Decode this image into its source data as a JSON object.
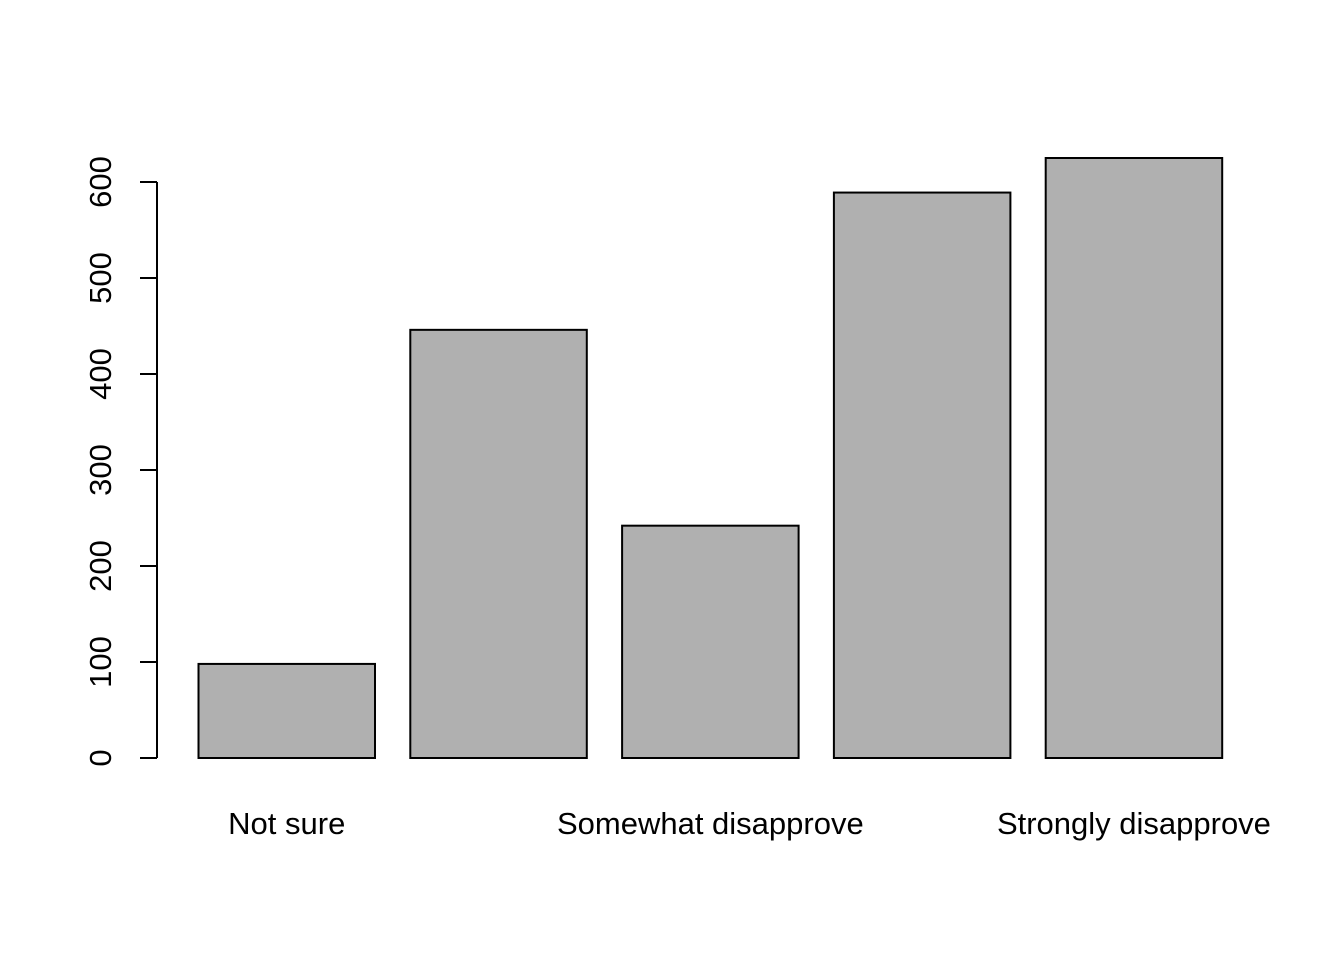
{
  "chart_data": {
    "type": "bar",
    "title": "",
    "xlabel": "",
    "ylabel": "",
    "categories": [
      "Not sure",
      "",
      "Somewhat disapprove",
      "",
      "Strongly disapprove"
    ],
    "values": [
      98,
      446,
      242,
      589,
      625
    ],
    "ylim": [
      0,
      625
    ],
    "yticks": [
      0,
      100,
      200,
      300,
      400,
      500,
      600
    ],
    "grid": false,
    "legend": "none",
    "bar_fill": "#b0b0b0",
    "bar_stroke": "#000000"
  }
}
